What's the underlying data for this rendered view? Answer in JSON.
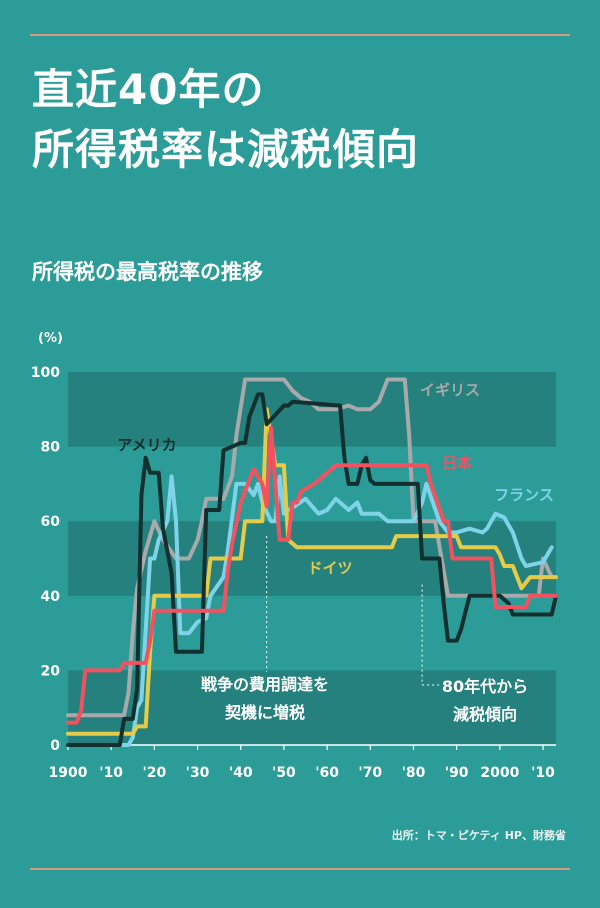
{
  "title_lines": [
    "直近40年の",
    "所得税率は減税傾向"
  ],
  "subtitle": "所得税の最高税率の推移",
  "source": "出所：トマ・ピケティ HP、財務省",
  "colors": {
    "background": "#2b9c98",
    "band": "#24817e",
    "rule": "#d99a7c",
    "usa": "#13302f",
    "uk": "#a7a9aa",
    "japan": "#f25260",
    "france": "#7fd3e8",
    "germany": "#e5cb48"
  },
  "chart_data": {
    "type": "line",
    "ylabel": "(%)",
    "xlim": [
      1900,
      2013
    ],
    "ylim": [
      0,
      100
    ],
    "x_ticks": [
      {
        "value": 1900,
        "label": "1900"
      },
      {
        "value": 1910,
        "label": "'10"
      },
      {
        "value": 1920,
        "label": "'20"
      },
      {
        "value": 1930,
        "label": "'30"
      },
      {
        "value": 1940,
        "label": "'40"
      },
      {
        "value": 1950,
        "label": "'50"
      },
      {
        "value": 1960,
        "label": "'60"
      },
      {
        "value": 1970,
        "label": "'70"
      },
      {
        "value": 1980,
        "label": "'80"
      },
      {
        "value": 1990,
        "label": "'90"
      },
      {
        "value": 2000,
        "label": "2000"
      },
      {
        "value": 2010,
        "label": "'10"
      }
    ],
    "y_ticks": [
      0,
      20,
      40,
      60,
      80,
      100
    ],
    "series": [
      {
        "name": "イギリス",
        "color_key": "uk",
        "points": [
          [
            1900,
            8
          ],
          [
            1909,
            8
          ],
          [
            1910,
            8
          ],
          [
            1913,
            8
          ],
          [
            1914,
            14
          ],
          [
            1915,
            30
          ],
          [
            1916,
            42
          ],
          [
            1918,
            52
          ],
          [
            1920,
            60
          ],
          [
            1922,
            55
          ],
          [
            1925,
            50
          ],
          [
            1928,
            50
          ],
          [
            1930,
            55
          ],
          [
            1931,
            60
          ],
          [
            1932,
            66
          ],
          [
            1936,
            66
          ],
          [
            1938,
            72
          ],
          [
            1939,
            83
          ],
          [
            1941,
            98
          ],
          [
            1942,
            98
          ],
          [
            1950,
            98
          ],
          [
            1952,
            95
          ],
          [
            1954,
            93
          ],
          [
            1956,
            92
          ],
          [
            1958,
            90
          ],
          [
            1962,
            90
          ],
          [
            1965,
            91
          ],
          [
            1967,
            90
          ],
          [
            1970,
            90
          ],
          [
            1972,
            92
          ],
          [
            1974,
            98
          ],
          [
            1978,
            98
          ],
          [
            1979,
            83
          ],
          [
            1980,
            60
          ],
          [
            1985,
            60
          ],
          [
            1988,
            40
          ],
          [
            2009,
            40
          ],
          [
            2010,
            50
          ],
          [
            2012,
            45
          ]
        ]
      },
      {
        "name": "アメリカ",
        "color_key": "usa",
        "points": [
          [
            1900,
            0
          ],
          [
            1912,
            0
          ],
          [
            1913,
            7
          ],
          [
            1915,
            7
          ],
          [
            1916,
            15
          ],
          [
            1917,
            67
          ],
          [
            1918,
            77
          ],
          [
            1919,
            73
          ],
          [
            1921,
            73
          ],
          [
            1922,
            58
          ],
          [
            1924,
            46
          ],
          [
            1925,
            25
          ],
          [
            1931,
            25
          ],
          [
            1932,
            63
          ],
          [
            1935,
            63
          ],
          [
            1936,
            79
          ],
          [
            1940,
            81
          ],
          [
            1941,
            81
          ],
          [
            1942,
            88
          ],
          [
            1944,
            94
          ],
          [
            1945,
            94
          ],
          [
            1946,
            86
          ],
          [
            1950,
            91
          ],
          [
            1951,
            91
          ],
          [
            1952,
            92
          ],
          [
            1963,
            91
          ],
          [
            1964,
            77
          ],
          [
            1965,
            70
          ],
          [
            1967,
            70
          ],
          [
            1968,
            75
          ],
          [
            1969,
            77
          ],
          [
            1970,
            71
          ],
          [
            1971,
            70
          ],
          [
            1981,
            70
          ],
          [
            1982,
            50
          ],
          [
            1986,
            50
          ],
          [
            1987,
            38
          ],
          [
            1988,
            28
          ],
          [
            1990,
            28
          ],
          [
            1991,
            31
          ],
          [
            1993,
            40
          ],
          [
            2000,
            40
          ],
          [
            2001,
            39
          ],
          [
            2002,
            38
          ],
          [
            2003,
            35
          ],
          [
            2012,
            35
          ],
          [
            2013,
            40
          ]
        ]
      },
      {
        "name": "日本",
        "color_key": "japan",
        "points": [
          [
            1900,
            6
          ],
          [
            1902,
            6
          ],
          [
            1903,
            9
          ],
          [
            1904,
            20
          ],
          [
            1912,
            20
          ],
          [
            1913,
            22
          ],
          [
            1918,
            22
          ],
          [
            1919,
            28
          ],
          [
            1920,
            36
          ],
          [
            1936,
            36
          ],
          [
            1937,
            47
          ],
          [
            1938,
            54
          ],
          [
            1940,
            65
          ],
          [
            1943,
            74
          ],
          [
            1945,
            70
          ],
          [
            1946,
            64
          ],
          [
            1947,
            85
          ],
          [
            1949,
            55
          ],
          [
            1951,
            55
          ],
          [
            1952,
            65
          ],
          [
            1953,
            65
          ],
          [
            1954,
            68
          ],
          [
            1957,
            70
          ],
          [
            1962,
            75
          ],
          [
            1974,
            75
          ],
          [
            1975,
            75
          ],
          [
            1976,
            75
          ],
          [
            1983,
            75
          ],
          [
            1984,
            70
          ],
          [
            1987,
            60
          ],
          [
            1988,
            60
          ],
          [
            1989,
            50
          ],
          [
            1994,
            50
          ],
          [
            1995,
            50
          ],
          [
            1998,
            50
          ],
          [
            1999,
            37
          ],
          [
            2006,
            37
          ],
          [
            2007,
            40
          ],
          [
            2013,
            40
          ]
        ]
      },
      {
        "name": "フランス",
        "color_key": "france",
        "points": [
          [
            1900,
            0
          ],
          [
            1914,
            0
          ],
          [
            1915,
            2
          ],
          [
            1916,
            10
          ],
          [
            1917,
            12
          ],
          [
            1919,
            50
          ],
          [
            1920,
            50
          ],
          [
            1921,
            55
          ],
          [
            1923,
            60
          ],
          [
            1924,
            72
          ],
          [
            1925,
            60
          ],
          [
            1926,
            30
          ],
          [
            1928,
            30
          ],
          [
            1930,
            33
          ],
          [
            1932,
            34
          ],
          [
            1933,
            40
          ],
          [
            1936,
            45
          ],
          [
            1937,
            52
          ],
          [
            1939,
            70
          ],
          [
            1941,
            70
          ],
          [
            1943,
            67
          ],
          [
            1944,
            70
          ],
          [
            1945,
            65
          ],
          [
            1947,
            60
          ],
          [
            1948,
            60
          ],
          [
            1949,
            72
          ],
          [
            1950,
            62
          ],
          [
            1955,
            66
          ],
          [
            1958,
            62
          ],
          [
            1960,
            63
          ],
          [
            1962,
            66
          ],
          [
            1965,
            63
          ],
          [
            1967,
            65
          ],
          [
            1968,
            62
          ],
          [
            1972,
            62
          ],
          [
            1974,
            60
          ],
          [
            1980,
            60
          ],
          [
            1982,
            65
          ],
          [
            1983,
            70
          ],
          [
            1986,
            60
          ],
          [
            1988,
            57
          ],
          [
            1990,
            57
          ],
          [
            1993,
            58
          ],
          [
            1996,
            57
          ],
          [
            1997,
            58
          ],
          [
            1999,
            62
          ],
          [
            2001,
            61
          ],
          [
            2003,
            57
          ],
          [
            2005,
            50
          ],
          [
            2006,
            48
          ],
          [
            2010,
            49
          ],
          [
            2012,
            53
          ]
        ]
      },
      {
        "name": "ドイツ",
        "color_key": "germany",
        "points": [
          [
            1900,
            3
          ],
          [
            1915,
            3
          ],
          [
            1916,
            5
          ],
          [
            1918,
            5
          ],
          [
            1919,
            25
          ],
          [
            1920,
            40
          ],
          [
            1932,
            40
          ],
          [
            1933,
            50
          ],
          [
            1940,
            50
          ],
          [
            1941,
            60
          ],
          [
            1945,
            60
          ],
          [
            1946,
            90
          ],
          [
            1948,
            75
          ],
          [
            1950,
            75
          ],
          [
            1951,
            55
          ],
          [
            1953,
            53
          ],
          [
            1975,
            53
          ],
          [
            1976,
            56
          ],
          [
            1990,
            56
          ],
          [
            1991,
            53
          ],
          [
            1999,
            53
          ],
          [
            2000,
            51
          ],
          [
            2001,
            48
          ],
          [
            2003,
            48
          ],
          [
            2004,
            45
          ],
          [
            2005,
            42
          ],
          [
            2007,
            45
          ],
          [
            2013,
            45
          ]
        ]
      }
    ],
    "labels": [
      {
        "series": "usa",
        "text": "アメリカ"
      },
      {
        "series": "uk",
        "text": "イギリス"
      },
      {
        "series": "japan",
        "text": "日本"
      },
      {
        "series": "france",
        "text": "フランス"
      },
      {
        "series": "germany",
        "text": "ドイツ"
      }
    ],
    "annotations": [
      {
        "x": 1946,
        "y": 56,
        "lines": [
          "戦争の費用調達を",
          "契機に増税"
        ]
      },
      {
        "x": 1982,
        "y": 43,
        "lines": [
          "80年代から",
          "減税傾向"
        ]
      }
    ]
  }
}
